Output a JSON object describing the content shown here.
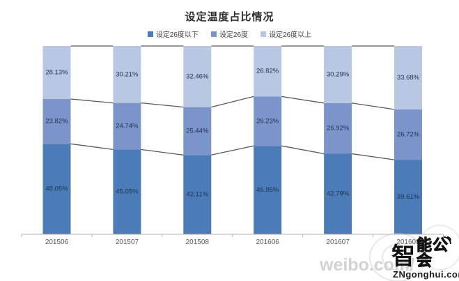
{
  "chart_data": {
    "type": "bar",
    "subtype": "stacked-100-percent",
    "title": "设定温度占比情况",
    "categories": [
      "201506",
      "201507",
      "201508",
      "201606",
      "201607",
      "201608"
    ],
    "series": [
      {
        "name": "设定26度以下",
        "color": "#4c7cb8",
        "values": [
          48.05,
          45.05,
          42.11,
          46.95,
          42.79,
          39.61
        ]
      },
      {
        "name": "设定26度",
        "color": "#7b95cb",
        "values": [
          23.82,
          24.74,
          25.44,
          26.23,
          26.92,
          26.72
        ]
      },
      {
        "name": "设定26度以上",
        "color": "#b8c7e2",
        "values": [
          28.13,
          30.21,
          32.46,
          26.82,
          30.29,
          33.68
        ]
      }
    ],
    "value_format": "percent-2dp",
    "ylim": [
      0,
      100
    ],
    "grid": false,
    "legend_position": "top",
    "series_lines": true,
    "data_label_color": "#1d3252",
    "axis_color": "#b3b3b3",
    "category_label_color": "#595959",
    "series_line_color": "#595959"
  },
  "watermark": {
    "weibo_text": "weibo.com/",
    "logo_char_main": "智",
    "logo_chars_rest": "能公会",
    "logo_sub": "ZNgonghui.com"
  }
}
